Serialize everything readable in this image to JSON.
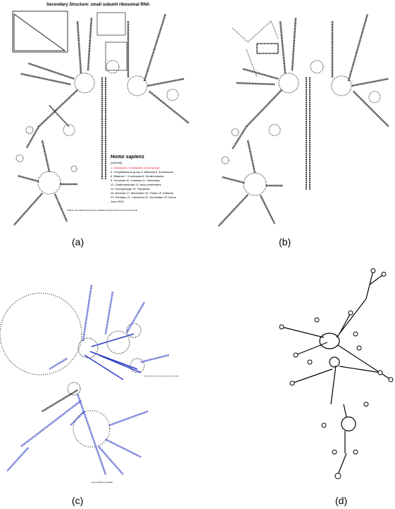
{
  "figure": {
    "panel_a": {
      "caption": "(a)",
      "header": "Secondary Structure: small subunit ribosomal RNA",
      "organism": "Homo sapiens",
      "accession": "[X03205]",
      "taxonomy_highlight": "1. Eukaryota 2. eukaryotic crown group",
      "taxonomy_lines": [
        "3. Fungi/Metazoa group 4. Metazoa 5. Eumetazoa",
        "6. Bilateria 7. Coelomata 8. Deuterostomia",
        "9. Chordata 10. Craniata 11. Vertebrata",
        "12. Gnathostomata 13. bony vertebrates",
        "14. Sarcopterygii 15. Tetrapoda",
        "16. Amniota 17. Mammalia 18. Theria 19. Eutheria",
        "20. Primates 21. Catarrhini 22. Hominidae 23. Homo",
        "June 2004"
      ],
      "footer": "Citation and related information available at http://www.rna.icmb.utexas.edu"
    },
    "panel_b": {
      "caption": "(b)"
    },
    "panel_c": {
      "caption": "(c)",
      "footer": "pmcr-hs04-ss-12.fasta"
    },
    "panel_d": {
      "caption": "(d)"
    },
    "colors": {
      "structure": "#000000",
      "highlight": "#e8141b",
      "pairing": "#2b3cc4"
    }
  }
}
